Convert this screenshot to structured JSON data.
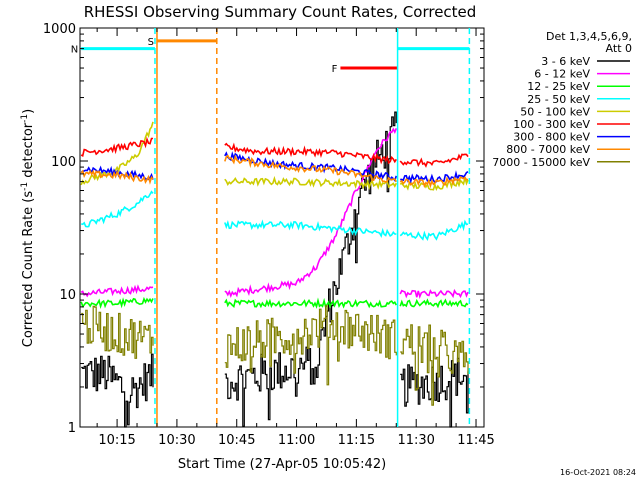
{
  "chart_data": {
    "type": "line",
    "title": "RHESSI Observing Summary Count Rates, Corrected",
    "xlabel": "Start Time (27-Apr-05 10:05:42)",
    "ylabel": "Corrected Count Rate (s⁻¹ detector⁻¹)",
    "ylabel_main": "Corrected Count Rate (s",
    "ylabel_sup1": "-1",
    "ylabel_mid": " detector",
    "ylabel_sup2": "-1",
    "ylabel_end": ")",
    "yscale": "log",
    "ylim": [
      1,
      1000
    ],
    "xlim": [
      "10:05:42",
      "11:47:00"
    ],
    "x_ticks": [
      "10:15",
      "10:30",
      "10:45",
      "11:00",
      "11:15",
      "11:30",
      "11:45"
    ],
    "y_ticks": [
      "1",
      "10",
      "100",
      "1000"
    ],
    "legend": {
      "placement": "right",
      "header1": "Det 1,3,4,5,6,9,",
      "header2": "Att 0",
      "entries": [
        {
          "label": "3 - 6 keV",
          "color": "#000000"
        },
        {
          "label": "6 - 12 keV",
          "color": "#ff00ff"
        },
        {
          "label": "12 - 25 keV",
          "color": "#00ff00"
        },
        {
          "label": "25 - 50 keV",
          "color": "#00ffff"
        },
        {
          "label": "50 - 100 keV",
          "color": "#cccc00"
        },
        {
          "label": "100 - 300 keV",
          "color": "#ff0000"
        },
        {
          "label": "300 - 800 keV",
          "color": "#0000ff"
        },
        {
          "label": "800 - 7000 keV",
          "color": "#ff8800"
        },
        {
          "label": "7000 - 15000 keV",
          "color": "#808000"
        }
      ]
    },
    "flags": [
      {
        "label": "S",
        "color": "#ff8800",
        "start": "10:25:00",
        "end": "10:40:00",
        "y": 800
      },
      {
        "label": "N",
        "color": "#00ffff",
        "start": "10:06:00",
        "end": "10:24:30",
        "y": 700
      },
      {
        "label": "F",
        "color": "#ff0000",
        "start": "11:11:00",
        "end": "11:25:20",
        "y": 500
      },
      {
        "label": "",
        "color": "#00ffff",
        "start": "11:25:20",
        "end": "11:43:20",
        "y": 700
      }
    ],
    "boundaries": [
      {
        "time": "10:24:30",
        "color": "#00ffff",
        "style": "dashed"
      },
      {
        "time": "10:25:00",
        "color": "#ff8800",
        "style": "solid"
      },
      {
        "time": "10:40:00",
        "color": "#ff8800",
        "style": "dashed"
      },
      {
        "time": "11:25:20",
        "color": "#00ffff",
        "style": "solid"
      },
      {
        "time": "11:43:20",
        "color": "#00ffff",
        "style": "dashed"
      }
    ],
    "series": [
      {
        "name": "3 - 6 keV",
        "color": "#000000",
        "style": "noisy-step",
        "segments": [
          {
            "t": [
              "10:06",
              "10:24"
            ],
            "v": [
              2.5,
              2.5,
              1.8,
              2.5
            ]
          },
          {
            "t": [
              "10:42",
              "11:05",
              "11:08",
              "11:12",
              "11:16",
              "11:20",
              "11:25"
            ],
            "v": [
              2.2,
              3.0,
              8,
              20,
              60,
              100,
              170
            ]
          },
          {
            "t": [
              "11:26",
              "11:43"
            ],
            "v": [
              2.0,
              2.2,
              2.5
            ]
          }
        ]
      },
      {
        "name": "6 - 12 keV",
        "color": "#ff00ff",
        "segments": [
          {
            "t": [
              "10:06",
              "10:24"
            ],
            "v": [
              10,
              10.5,
              11
            ]
          },
          {
            "t": [
              "10:42",
              "11:00",
              "11:05",
              "11:10",
              "11:15",
              "11:20",
              "11:25"
            ],
            "v": [
              10,
              12,
              16,
              28,
              60,
              120,
              180
            ]
          },
          {
            "t": [
              "11:26",
              "11:43"
            ],
            "v": [
              10,
              10,
              10
            ]
          }
        ]
      },
      {
        "name": "12 - 25 keV",
        "color": "#00ff00",
        "segments": [
          {
            "t": [
              "10:06",
              "10:24"
            ],
            "v": [
              8.5,
              8.5,
              9
            ]
          },
          {
            "t": [
              "10:42",
              "11:25"
            ],
            "v": [
              8.5,
              8.5,
              8.5
            ]
          },
          {
            "t": [
              "11:26",
              "11:43"
            ],
            "v": [
              8.5,
              8.5,
              8.5
            ]
          }
        ]
      },
      {
        "name": "25 - 50 keV",
        "color": "#00ffff",
        "segments": [
          {
            "t": [
              "10:06",
              "10:15",
              "10:20",
              "10:24"
            ],
            "v": [
              32,
              40,
              48,
              60
            ]
          },
          {
            "t": [
              "10:42",
              "11:00",
              "11:25"
            ],
            "v": [
              33,
              33,
              28
            ]
          },
          {
            "t": [
              "11:26",
              "11:35",
              "11:43"
            ],
            "v": [
              28,
              27,
              34
            ]
          }
        ]
      },
      {
        "name": "50 - 100 keV",
        "color": "#cccc00",
        "segments": [
          {
            "t": [
              "10:06",
              "10:15",
              "10:20",
              "10:24"
            ],
            "v": [
              70,
              85,
              110,
              190
            ]
          },
          {
            "t": [
              "10:42",
              "11:00",
              "11:25"
            ],
            "v": [
              70,
              70,
              66
            ]
          },
          {
            "t": [
              "11:26",
              "11:35",
              "11:43"
            ],
            "v": [
              66,
              64,
              72
            ]
          }
        ]
      },
      {
        "name": "100 - 300 keV",
        "color": "#ff0000",
        "segments": [
          {
            "t": [
              "10:06",
              "10:15",
              "10:24"
            ],
            "v": [
              115,
              125,
              140
            ]
          },
          {
            "t": [
              "10:42",
              "10:50",
              "11:00",
              "11:10",
              "11:25"
            ],
            "v": [
              128,
              118,
              118,
              115,
              100
            ]
          },
          {
            "t": [
              "11:26",
              "11:35",
              "11:43"
            ],
            "v": [
              100,
              95,
              110
            ]
          }
        ]
      },
      {
        "name": "300 - 800 keV",
        "color": "#0000ff",
        "segments": [
          {
            "t": [
              "10:06",
              "10:15",
              "10:24"
            ],
            "v": [
              88,
              82,
              75
            ]
          },
          {
            "t": [
              "10:42",
              "10:55",
              "11:10",
              "11:25"
            ],
            "v": [
              110,
              95,
              88,
              75
            ]
          },
          {
            "t": [
              "11:26",
              "11:35",
              "11:43"
            ],
            "v": [
              75,
              73,
              80
            ]
          }
        ]
      },
      {
        "name": "800 - 7000 keV",
        "color": "#ff8800",
        "segments": [
          {
            "t": [
              "10:06",
              "10:15",
              "10:24"
            ],
            "v": [
              80,
              78,
              72
            ]
          },
          {
            "t": [
              "10:42",
              "10:55",
              "11:10",
              "11:25"
            ],
            "v": [
              105,
              92,
              84,
              70
            ]
          },
          {
            "t": [
              "11:26",
              "11:35",
              "11:43"
            ],
            "v": [
              70,
              68,
              76
            ]
          }
        ]
      },
      {
        "name": "7000 - 15000 keV",
        "color": "#808000",
        "style": "noisy-step",
        "segments": [
          {
            "t": [
              "10:06",
              "10:24"
            ],
            "v": [
              6,
              5,
              4.5
            ]
          },
          {
            "t": [
              "10:42",
              "11:00",
              "11:10",
              "11:25"
            ],
            "v": [
              4.0,
              5,
              6,
              4.5
            ]
          },
          {
            "t": [
              "11:26",
              "11:43"
            ],
            "v": [
              4.5,
              4.0,
              3.0
            ]
          }
        ]
      }
    ]
  },
  "footer": {
    "timestamp": "16-Oct-2021 08:24"
  }
}
